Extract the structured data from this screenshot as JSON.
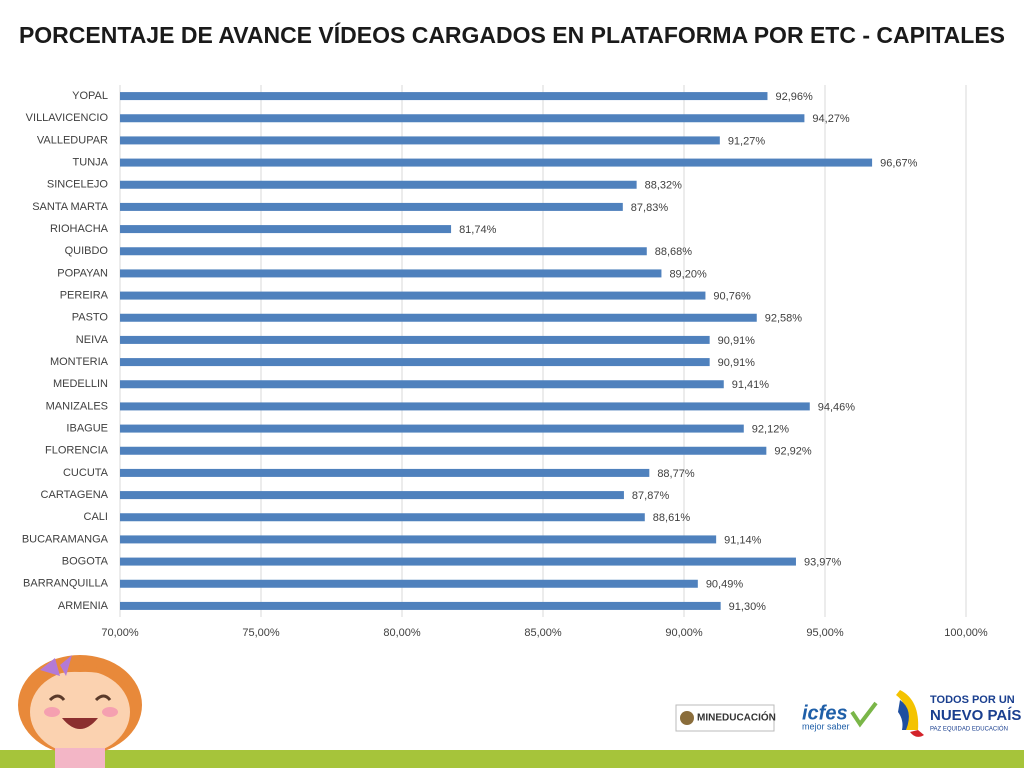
{
  "chart_data": {
    "type": "bar",
    "orientation": "horizontal",
    "title": "PORCENTAJE DE AVANCE VÍDEOS CARGADOS EN PLATAFORMA POR ETC - CAPITALES",
    "categories": [
      "YOPAL",
      "VILLAVICENCIO",
      "VALLEDUPAR",
      "TUNJA",
      "SINCELEJO",
      "SANTA MARTA",
      "RIOHACHA",
      "QUIBDO",
      "POPAYAN",
      "PEREIRA",
      "PASTO",
      "NEIVA",
      "MONTERIA",
      "MEDELLIN",
      "MANIZALES",
      "IBAGUE",
      "FLORENCIA",
      "CUCUTA",
      "CARTAGENA",
      "CALI",
      "BUCARAMANGA",
      "BOGOTA",
      "BARRANQUILLA",
      "ARMENIA"
    ],
    "values": [
      92.96,
      94.27,
      91.27,
      96.67,
      88.32,
      87.83,
      81.74,
      88.68,
      89.2,
      90.76,
      92.58,
      90.91,
      90.91,
      91.41,
      94.46,
      92.12,
      92.92,
      88.77,
      87.87,
      88.61,
      91.14,
      93.97,
      90.49,
      91.3
    ],
    "value_labels": [
      "92,96%",
      "94,27%",
      "91,27%",
      "96,67%",
      "88,32%",
      "87,83%",
      "81,74%",
      "88,68%",
      "89,20%",
      "90,76%",
      "92,58%",
      "90,91%",
      "90,91%",
      "91,41%",
      "94,46%",
      "92,12%",
      "92,92%",
      "88,77%",
      "87,87%",
      "88,61%",
      "91,14%",
      "93,97%",
      "90,49%",
      "91,30%"
    ],
    "color": "#4f81bd",
    "xlim": [
      70,
      100
    ],
    "xticks": [
      {
        "value": 70,
        "label": "70,00%"
      },
      {
        "value": 75,
        "label": "75,00%"
      },
      {
        "value": 80,
        "label": "80,00%"
      },
      {
        "value": 85,
        "label": "85,00%"
      },
      {
        "value": 90,
        "label": "90,00%"
      },
      {
        "value": 95,
        "label": "95,00%"
      },
      {
        "value": 100,
        "label": "100,00%"
      }
    ],
    "grid": true
  },
  "logos": {
    "mineducacion": "MINEDUCACIÓN",
    "icfes": "icfes",
    "icfes_tagline": "mejor saber",
    "gobierno_top": "TODOS POR UN",
    "gobierno_main": "NUEVO PAÍS",
    "gobierno_tagline": "PAZ  EQUIDAD  EDUCACIÓN"
  }
}
